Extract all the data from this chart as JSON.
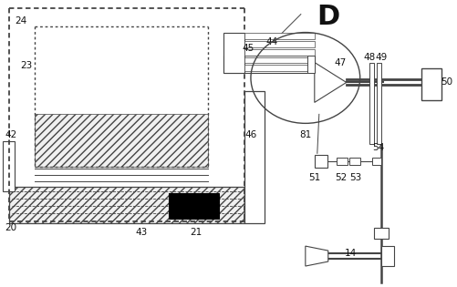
{
  "bg_color": "#ffffff",
  "line_color": "#444444",
  "font_size": 7.5,
  "title_font_size": 20
}
